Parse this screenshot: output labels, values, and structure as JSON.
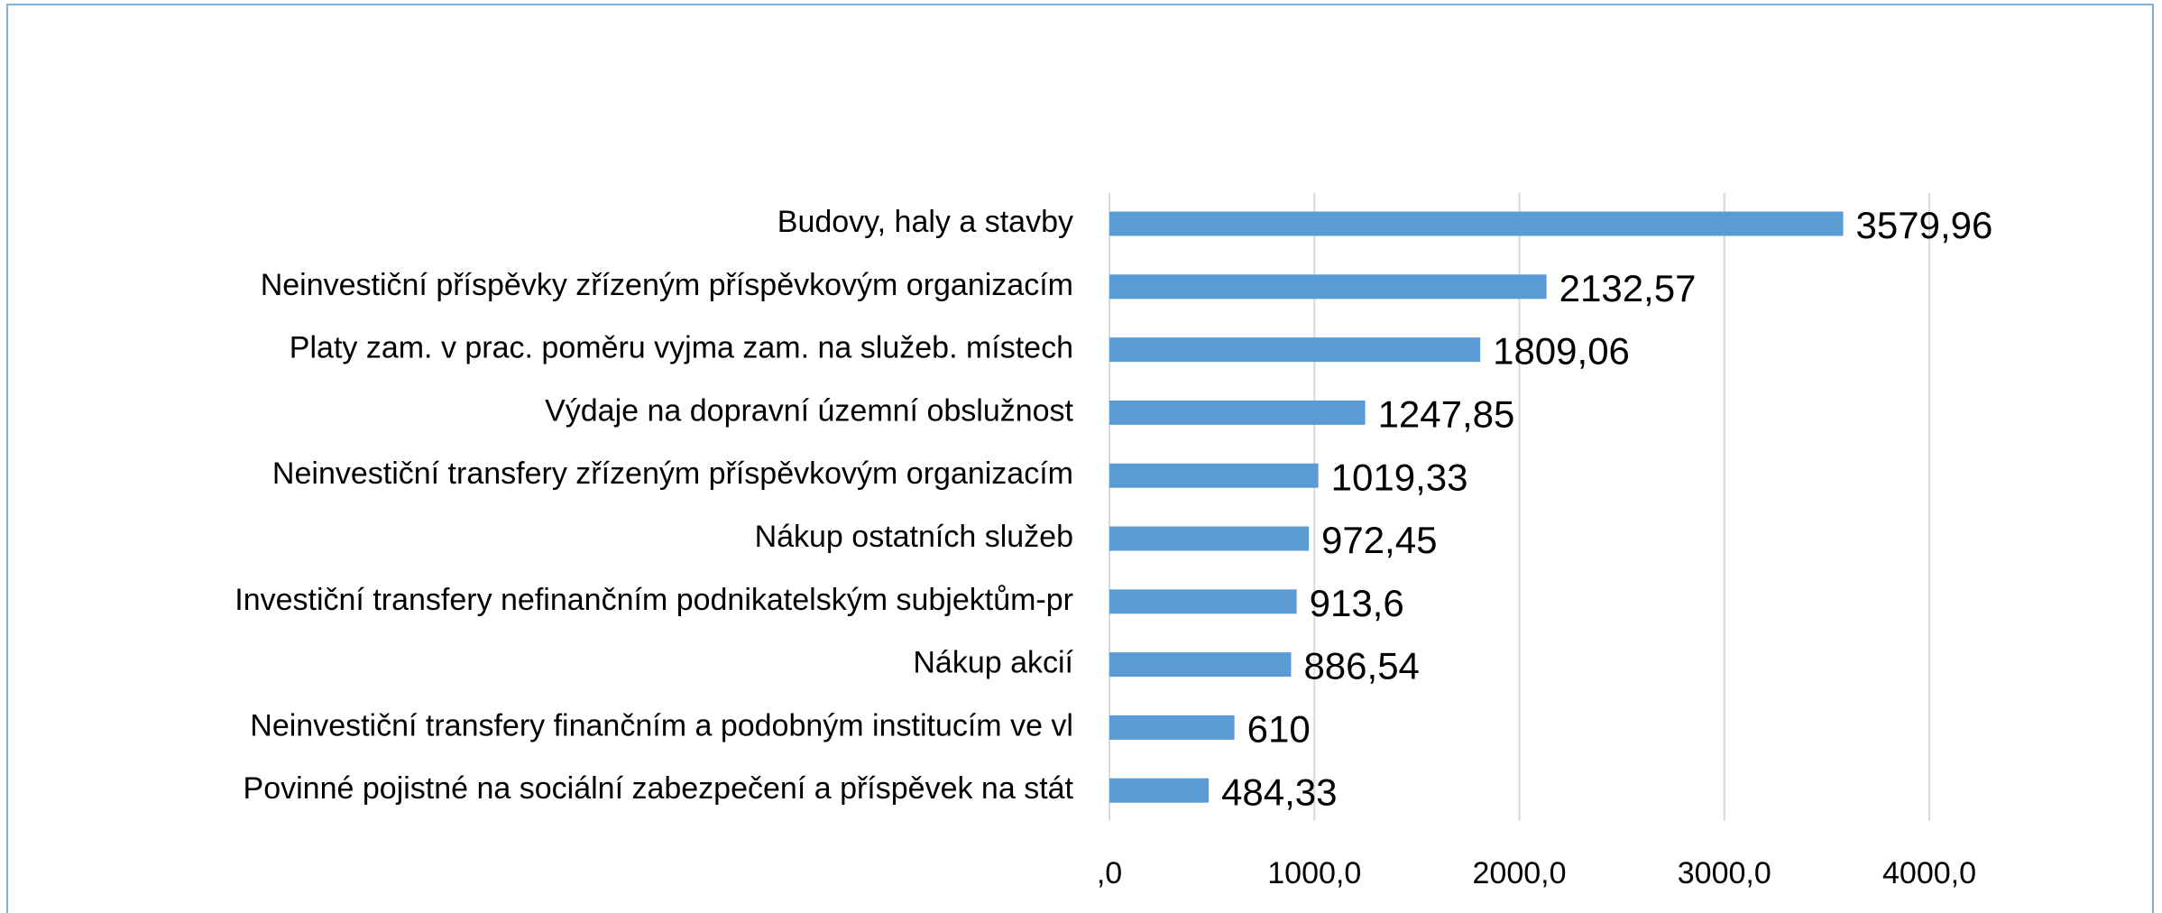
{
  "chart_data": {
    "type": "bar",
    "orientation": "horizontal",
    "categories": [
      "Budovy, haly a stavby",
      "Neinvestiční příspěvky zřízeným příspěvkovým organizacím",
      "Platy zam. v prac. poměru vyjma zam. na služeb. místech",
      "Výdaje na dopravní územní obslužnost",
      "Neinvestiční transfery zřízeným příspěvkovým organizacím",
      "Nákup ostatních služeb",
      "Investiční transfery nefinančním podnikatelským subjektům-pr",
      "Nákup akcií",
      "Neinvestiční transfery finančním a podobným institucím ve vl",
      "Povinné pojistné na sociální zabezpečení a příspěvek na stát"
    ],
    "values": [
      3579.96,
      2132.57,
      1809.06,
      1247.85,
      1019.33,
      972.45,
      913.6,
      886.54,
      610,
      484.33
    ],
    "value_labels": [
      "3579,96",
      "2132,57",
      "1809,06",
      "1247,85",
      "1019,33",
      "972,45",
      "913,6",
      "886,54",
      "610",
      "484,33"
    ],
    "color": "#5b9bd5",
    "xlim": [
      0,
      4000
    ],
    "xticks": [
      {
        "value": 0,
        "label": ",0"
      },
      {
        "value": 1000,
        "label": "1000,0"
      },
      {
        "value": 2000,
        "label": "2000,0"
      },
      {
        "value": 3000,
        "label": "3000,0"
      },
      {
        "value": 4000,
        "label": "4000,0"
      }
    ],
    "grid": true
  }
}
